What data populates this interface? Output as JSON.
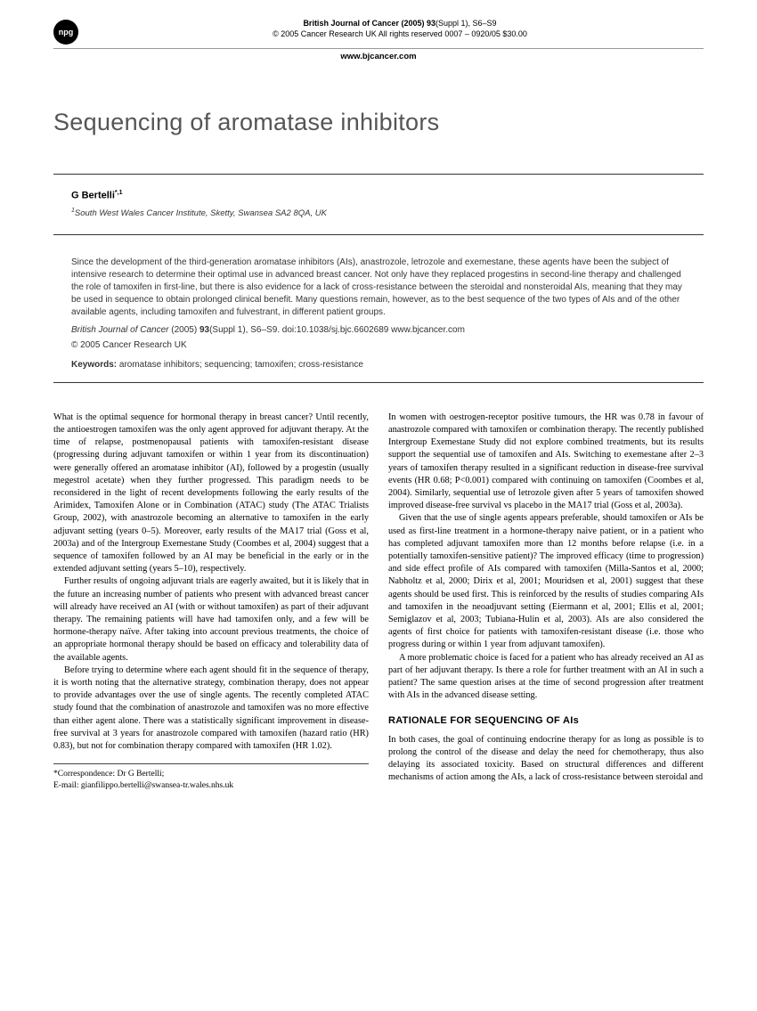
{
  "header": {
    "badge": "npg",
    "journal": "British Journal of Cancer (2005) 93",
    "issue": "(Suppl 1), S6–S9",
    "copyright_line": "© 2005 Cancer Research UK   All rights reserved 0007 – 0920/05   $30.00",
    "website": "www.bjcancer.com"
  },
  "title": "Sequencing of aromatase inhibitors",
  "author": {
    "name": "G Bertelli",
    "markers": "*,1",
    "affiliation_marker": "1",
    "affiliation": "South West Wales Cancer Institute, Sketty, Swansea SA2 8QA, UK"
  },
  "abstract": {
    "text": "Since the development of the third-generation aromatase inhibitors (AIs), anastrozole, letrozole and exemestane, these agents have been the subject of intensive research to determine their optimal use in advanced breast cancer. Not only have they replaced progestins in second-line therapy and challenged the role of tamoxifen in first-line, but there is also evidence for a lack of cross-resistance between the steroidal and nonsteroidal AIs, meaning that they may be used in sequence to obtain prolonged clinical benefit. Many questions remain, however, as to the best sequence of the two types of AIs and of the other available agents, including tamoxifen and fulvestrant, in different patient groups.",
    "citation_journal": "British Journal of Cancer",
    "citation_rest": " (2005) ",
    "citation_vol": "93",
    "citation_pages": "(Suppl 1), S6–S9. doi:10.1038/sj.bjc.6602689   www.bjcancer.com",
    "copyright": "© 2005 Cancer Research UK",
    "keywords_label": "Keywords:",
    "keywords": " aromatase inhibitors; sequencing; tamoxifen; cross-resistance"
  },
  "body": {
    "p1": "What is the optimal sequence for hormonal therapy in breast cancer? Until recently, the antioestrogen tamoxifen was the only agent approved for adjuvant therapy. At the time of relapse, postmenopausal patients with tamoxifen-resistant disease (progressing during adjuvant tamoxifen or within 1 year from its discontinuation) were generally offered an aromatase inhibitor (AI), followed by a progestin (usually megestrol acetate) when they further progressed. This paradigm needs to be reconsidered in the light of recent developments following the early results of the Arimidex, Tamoxifen Alone or in Combination (ATAC) study (The ATAC Trialists Group, 2002), with anastrozole becoming an alternative to tamoxifen in the early adjuvant setting (years 0–5). Moreover, early results of the MA17 trial (Goss et al, 2003a) and of the Intergroup Exemestane Study (Coombes et al, 2004) suggest that a sequence of tamoxifen followed by an AI may be beneficial in the early or in the extended adjuvant setting (years 5–10), respectively.",
    "p2": "Further results of ongoing adjuvant trials are eagerly awaited, but it is likely that in the future an increasing number of patients who present with advanced breast cancer will already have received an AI (with or without tamoxifen) as part of their adjuvant therapy. The remaining patients will have had tamoxifen only, and a few will be hormone-therapy naïve. After taking into account previous treatments, the choice of an appropriate hormonal therapy should be based on efficacy and tolerability data of the available agents.",
    "p3": "Before trying to determine where each agent should fit in the sequence of therapy, it is worth noting that the alternative strategy, combination therapy, does not appear to provide advantages over the use of single agents. The recently completed ATAC study found that the combination of anastrozole and tamoxifen was no more effective than either agent alone. There was a statistically significant improvement in disease-free survival at 3 years for anastrozole compared with tamoxifen (hazard ratio (HR) 0.83), but not for combination therapy compared with tamoxifen (HR 1.02).",
    "p4": "In women with oestrogen-receptor positive tumours, the HR was 0.78 in favour of anastrozole compared with tamoxifen or combination therapy. The recently published Intergroup Exemestane Study did not explore combined treatments, but its results support the sequential use of tamoxifen and AIs. Switching to exemestane after 2–3 years of tamoxifen therapy resulted in a significant reduction in disease-free survival events (HR 0.68; P<0.001) compared with continuing on tamoxifen (Coombes et al, 2004). Similarly, sequential use of letrozole given after 5 years of tamoxifen showed improved disease-free survival vs placebo in the MA17 trial (Goss et al, 2003a).",
    "p5": "Given that the use of single agents appears preferable, should tamoxifen or AIs be used as first-line treatment in a hormone-therapy naive patient, or in a patient who has completed adjuvant tamoxifen more than 12 months before relapse (i.e. in a potentially tamoxifen-sensitive patient)? The improved efficacy (time to progression) and side effect profile of AIs compared with tamoxifen (Milla-Santos et al, 2000; Nabholtz et al, 2000; Dirix et al, 2001; Mouridsen et al, 2001) suggest that these agents should be used first. This is reinforced by the results of studies comparing AIs and tamoxifen in the neoadjuvant setting (Eiermann et al, 2001; Ellis et al, 2001; Semiglazov et al, 2003; Tubiana-Hulin et al, 2003). AIs are also considered the agents of first choice for patients with tamoxifen-resistant disease (i.e. those who progress during or within 1 year from adjuvant tamoxifen).",
    "p6": "A more problematic choice is faced for a patient who has already received an AI as part of her adjuvant therapy. Is there a role for further treatment with an AI in such a patient? The same question arises at the time of second progression after treatment with AIs in the advanced disease setting.",
    "section1_heading": "RATIONALE FOR SEQUENCING OF AIs",
    "p7": "In both cases, the goal of continuing endocrine therapy for as long as possible is to prolong the control of the disease and delay the need for chemotherapy, thus also delaying its associated toxicity. Based on structural differences and different mechanisms of action among the AIs, a lack of cross-resistance between steroidal and"
  },
  "correspondence": {
    "line1": "*Correspondence: Dr G Bertelli;",
    "line2": "E-mail: gianfilippo.bertelli@swansea-tr.wales.nhs.uk"
  }
}
